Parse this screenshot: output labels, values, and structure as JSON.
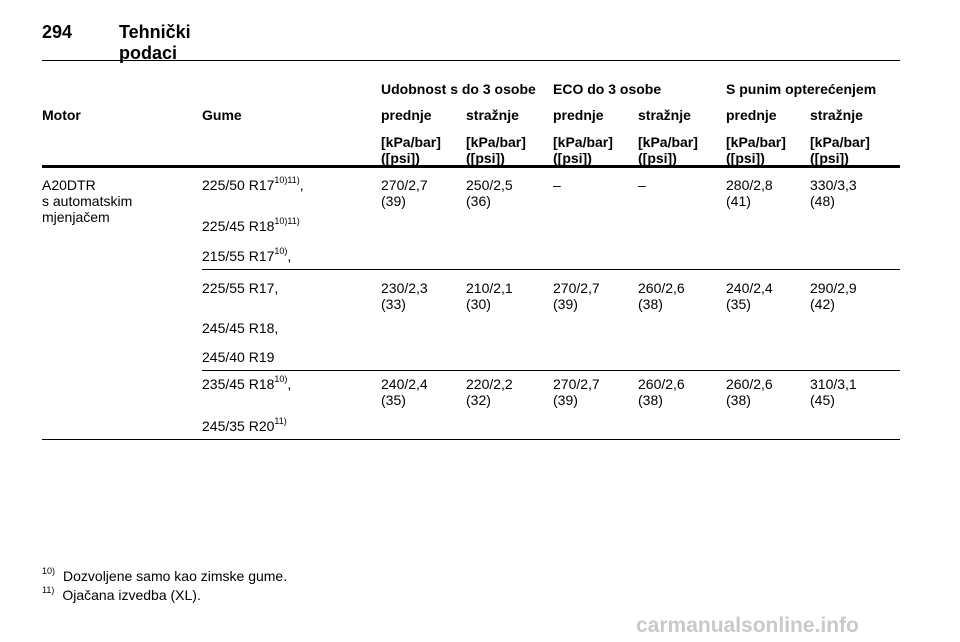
{
  "header": {
    "page_number": "294",
    "title": "Tehnički podaci"
  },
  "table": {
    "groups": [
      "Udobnost s do 3 osobe",
      "ECO do 3 osobe",
      "S punim opterećenjem"
    ],
    "col_motor": "Motor",
    "col_tyres": "Gume",
    "sub": [
      "prednje",
      "stražnje",
      "prednje",
      "stražnje",
      "prednje",
      "stražnje"
    ],
    "unit_kpa": "[kPa/bar]",
    "unit_psi": "([psi])",
    "motor": [
      "A20DTR",
      "s automatskim",
      "mjenjačem"
    ],
    "tyres": [
      {
        "text": "225/50 R17",
        "sup": "10)11)",
        "suffix": ","
      },
      {
        "text": "225/45 R18",
        "sup": "10)11)",
        "suffix": ""
      },
      {
        "text": "215/55 R17",
        "sup": "10)",
        "suffix": ","
      },
      {
        "text": "225/55 R17,",
        "sup": "",
        "suffix": ""
      },
      {
        "text": "245/45 R18,",
        "sup": "",
        "suffix": ""
      },
      {
        "text": "245/40 R19",
        "sup": "",
        "suffix": ""
      },
      {
        "text": "235/45 R18",
        "sup": "10)",
        "suffix": ","
      },
      {
        "text": "245/35 R20",
        "sup": "11)",
        "suffix": ""
      }
    ],
    "values": [
      [
        [
          "270/2,7",
          "(39)"
        ],
        [
          "250/2,5",
          "(36)"
        ],
        [
          "–",
          ""
        ],
        [
          "–",
          ""
        ],
        [
          "280/2,8",
          "(41)"
        ],
        [
          "330/3,3",
          "(48)"
        ]
      ],
      [
        [
          "230/2,3",
          "(33)"
        ],
        [
          "210/2,1",
          "(30)"
        ],
        [
          "270/2,7",
          "(39)"
        ],
        [
          "260/2,6",
          "(38)"
        ],
        [
          "240/2,4",
          "(35)"
        ],
        [
          "290/2,9",
          "(42)"
        ]
      ],
      [
        [
          "240/2,4",
          "(35)"
        ],
        [
          "220/2,2",
          "(32)"
        ],
        [
          "270/2,7",
          "(39)"
        ],
        [
          "260/2,6",
          "(38)"
        ],
        [
          "260/2,6",
          "(38)"
        ],
        [
          "310/3,1",
          "(45)"
        ]
      ]
    ]
  },
  "footnotes": [
    {
      "mark": "10)",
      "text": "Dozvoljene samo kao zimske gume."
    },
    {
      "mark": "11)",
      "text": "Ojačana izvedba (XL)."
    }
  ],
  "watermark": "carmanualsonline.info"
}
